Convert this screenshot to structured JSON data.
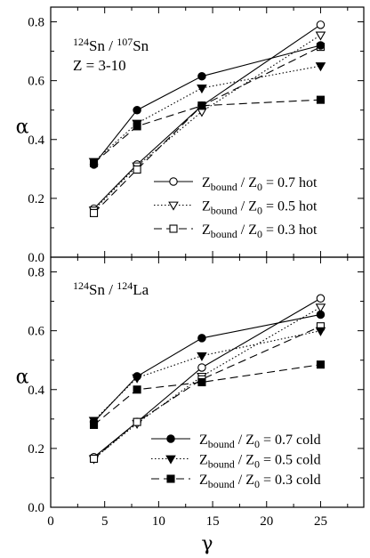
{
  "chart_data": [
    {
      "type": "line",
      "panel": "top",
      "annotations": [
        {
          "text": "124Sn / 107Sn",
          "parts": [
            {
              "t": "124",
              "sup": true
            },
            {
              "t": "Sn / "
            },
            {
              "t": "107",
              "sup": true
            },
            {
              "t": "Sn"
            }
          ]
        },
        {
          "text": "Z = 3-10",
          "parts": [
            {
              "t": "Z = 3-10"
            }
          ]
        }
      ],
      "ylabel": "α",
      "xlabel": "",
      "xlim": [
        0,
        29
      ],
      "ylim": [
        0,
        0.85
      ],
      "x_ticks": [
        "0",
        "5",
        "10",
        "15",
        "20",
        "25"
      ],
      "y_ticks": [
        "0.0",
        "0.2",
        "0.4",
        "0.6",
        "0.8"
      ],
      "x": [
        4,
        8,
        14,
        25
      ],
      "series": [
        {
          "name": "Zbound / Z0 = 0.7 hot",
          "group": "hot",
          "level": "0.7",
          "marker": "circle-open",
          "dash": "solid",
          "values": [
            0.165,
            0.315,
            0.515,
            0.79
          ]
        },
        {
          "name": "Zbound / Z0 = 0.5 hot",
          "group": "hot",
          "level": "0.5",
          "marker": "triangle-open",
          "dash": "dotted",
          "values": [
            0.16,
            0.31,
            0.495,
            0.755
          ]
        },
        {
          "name": "Zbound / Z0 = 0.3 hot",
          "group": "hot",
          "level": "0.3",
          "marker": "square-open",
          "dash": "dashed",
          "values": [
            0.15,
            0.298,
            0.515,
            0.715
          ]
        },
        {
          "name": "Zbound / Z0 = 0.7 cold",
          "group": "cold",
          "level": "0.7",
          "marker": "circle-filled",
          "dash": "solid",
          "values": [
            0.315,
            0.5,
            0.615,
            0.72
          ]
        },
        {
          "name": "Zbound / Z0 = 0.5 cold",
          "group": "cold",
          "level": "0.5",
          "marker": "triangle-filled",
          "dash": "dotted",
          "values": [
            0.325,
            0.455,
            0.575,
            0.65
          ]
        },
        {
          "name": "Zbound / Z0 = 0.3 cold",
          "group": "cold",
          "level": "0.3",
          "marker": "square-filled",
          "dash": "dashed",
          "values": [
            0.32,
            0.445,
            0.515,
            0.535
          ]
        }
      ],
      "legend": {
        "location": "lower-right",
        "groups": [
          "hot"
        ]
      }
    },
    {
      "type": "line",
      "panel": "bottom",
      "annotations": [
        {
          "text": "124Sn / 124La",
          "parts": [
            {
              "t": "124",
              "sup": true
            },
            {
              "t": "Sn / "
            },
            {
              "t": "124",
              "sup": true
            },
            {
              "t": "La"
            }
          ]
        }
      ],
      "ylabel": "α",
      "xlabel": "γ",
      "xlim": [
        0,
        29
      ],
      "ylim": [
        0,
        0.85
      ],
      "x_ticks": [
        "0",
        "5",
        "10",
        "15",
        "20",
        "25"
      ],
      "y_ticks": [
        "0.0",
        "0.2",
        "0.4",
        "0.6",
        "0.8"
      ],
      "x": [
        4,
        8,
        14,
        25
      ],
      "series": [
        {
          "name": "Zbound / Z0 = 0.7 hot",
          "group": "hot",
          "level": "0.7",
          "marker": "circle-open",
          "dash": "solid",
          "values": [
            0.17,
            0.29,
            0.475,
            0.71
          ]
        },
        {
          "name": "Zbound / Z0 = 0.5 hot",
          "group": "hot",
          "level": "0.5",
          "marker": "triangle-open",
          "dash": "dotted",
          "values": [
            0.165,
            0.285,
            0.445,
            0.68
          ]
        },
        {
          "name": "Zbound / Z0 = 0.3 hot",
          "group": "hot",
          "level": "0.3",
          "marker": "square-open",
          "dash": "dashed",
          "values": [
            0.165,
            0.29,
            0.435,
            0.615
          ]
        },
        {
          "name": "Zbound / Z0 = 0.7 cold",
          "group": "cold",
          "level": "0.7",
          "marker": "circle-filled",
          "dash": "solid",
          "values": [
            0.29,
            0.445,
            0.575,
            0.655
          ]
        },
        {
          "name": "Zbound / Z0 = 0.5 cold",
          "group": "cold",
          "level": "0.5",
          "marker": "triangle-filled",
          "dash": "dotted",
          "values": [
            0.295,
            0.44,
            0.515,
            0.6
          ]
        },
        {
          "name": "Zbound / Z0 = 0.3 cold",
          "group": "cold",
          "level": "0.3",
          "marker": "square-filled",
          "dash": "dashed",
          "values": [
            0.28,
            0.4,
            0.425,
            0.485
          ]
        }
      ],
      "legend": {
        "location": "lower-right",
        "groups": [
          "cold"
        ]
      }
    }
  ]
}
